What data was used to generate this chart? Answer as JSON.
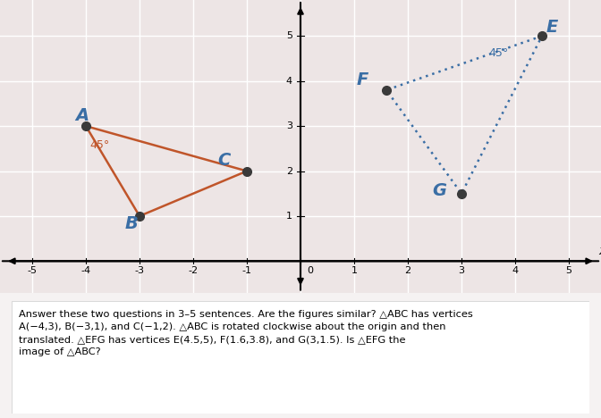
{
  "abc_vertices": {
    "A": [
      -4,
      3
    ],
    "B": [
      -3,
      1
    ],
    "C": [
      -1,
      2
    ]
  },
  "efg_vertices": {
    "E": [
      4.5,
      5
    ],
    "F": [
      1.6,
      3.8
    ],
    "G": [
      3,
      1.5
    ]
  },
  "abc_color": "#c0552a",
  "efg_color": "#3a6ea5",
  "dot_color": "#3a3a3a",
  "angle_abc_label": "45°",
  "angle_efg_label": "45°",
  "xlim": [
    -5.6,
    5.6
  ],
  "ylim": [
    -0.7,
    5.8
  ],
  "xticks": [
    -5,
    -4,
    -3,
    -2,
    -1,
    0,
    1,
    2,
    3,
    4,
    5
  ],
  "yticks": [
    1,
    2,
    3,
    4,
    5
  ],
  "bg_color": "#ede5e5",
  "grid_color": "#ffffff",
  "label_color": "#3a6ea5",
  "text_bg": "#f5f2f2",
  "text_content": "Answer these two questions in 3–5 sentences. Are the figures similar? △ABC has vertices\nA(−4,3), B(−3,1), and C(−1,2). △ABC is rotated clockwise about the origin and then\ntranslated. △EFG has vertices E(4.5,5), F(1.6,3.8), and G(3,1.5). Is △EFG the\nimage of △ABC?"
}
